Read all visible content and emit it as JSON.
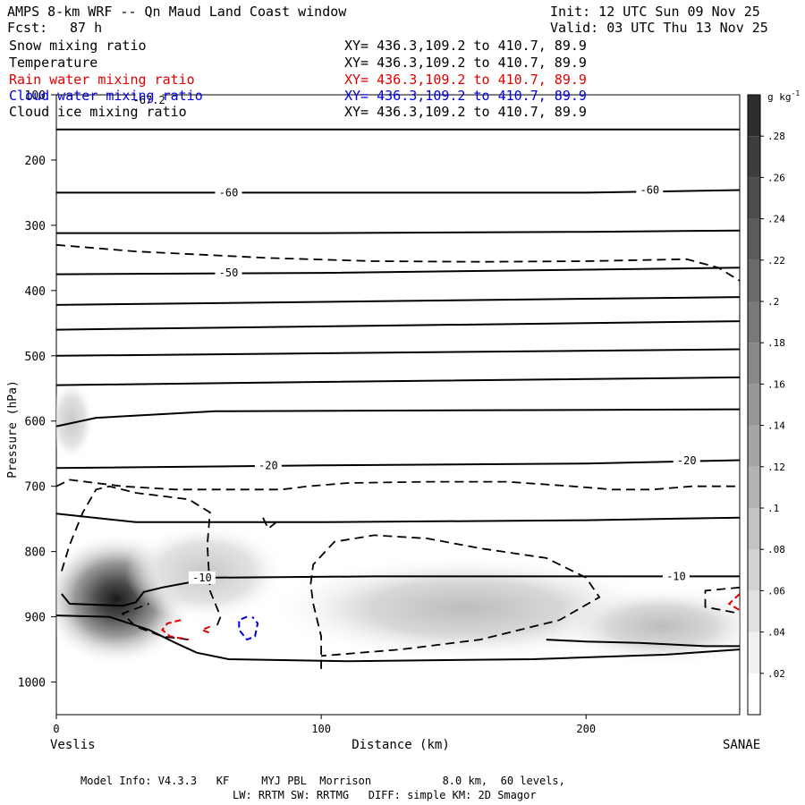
{
  "header": {
    "title": "AMPS 8-km WRF -- Qn Maud Land Coast window",
    "init": "Init: 12 UTC Sun 09 Nov 25",
    "fcst_label": "Fcst:",
    "fcst_value": "87 h",
    "valid": "Valid: 03 UTC Thu 13 Nov 25"
  },
  "fields": [
    {
      "name": "Snow mixing ratio",
      "xy": "XY= 436.3,109.2 to 410.7, 89.9",
      "color": "#000000"
    },
    {
      "name": "Temperature",
      "xy": "XY= 436.3,109.2 to 410.7, 89.9",
      "color": "#000000"
    },
    {
      "name": "Rain water mixing ratio",
      "xy": "XY= 436.3,109.2 to 410.7, 89.9",
      "color": "#e00000"
    },
    {
      "name": "Cloud water mixing ratio",
      "xy": "XY= 436.3,109.2 to 410.7, 89.9",
      "color": "#0000e0"
    },
    {
      "name": "Cloud ice mixing ratio",
      "xy": "XY= 436.3,109.2 to 410.7, 89.9",
      "color": "#000000"
    }
  ],
  "footer": {
    "line1": "Model Info: V4.3.3   KF     MYJ PBL  Morrison           8.0 km,  60 levels,",
    "line2": "LW: RRTM SW: RRTMG   DIFF: simple KM: 2D Smagor"
  },
  "chart_data": {
    "type": "contour-cross-section",
    "title": "AMPS 8-km WRF -- Qn Maud Land Coast window",
    "xlabel": "Distance (km)",
    "ylabel": "Pressure (hPa)",
    "xlim": [
      0,
      258
    ],
    "ylim": [
      1050,
      100
    ],
    "x_ticks": [
      0,
      100,
      200
    ],
    "y_ticks": [
      100,
      200,
      300,
      400,
      500,
      600,
      700,
      800,
      900,
      1000
    ],
    "endpoints": {
      "left": "Veslis",
      "right": "SANAE"
    },
    "colorbar": {
      "unit": "g kg",
      "unit_exp": "-1",
      "levels": [
        ".02",
        ".04",
        ".06",
        ".08",
        ".1",
        ".12",
        ".14",
        ".16",
        ".18",
        ".2",
        ".22",
        ".24",
        ".26",
        ".28"
      ],
      "min_color": "#ffffff",
      "max_color": "#2e2e2e"
    },
    "temperature_contours": [
      {
        "label": "-67.2",
        "points": [
          [
            0,
            153
          ],
          [
            258,
            153
          ]
        ],
        "label_at": [
          35,
          108
        ]
      },
      {
        "label": "-60",
        "points": [
          [
            0,
            250
          ],
          [
            100,
            250
          ],
          [
            200,
            250
          ],
          [
            258,
            246
          ]
        ],
        "label_at": [
          65,
          250
        ],
        "label2_at": [
          224,
          246
        ]
      },
      {
        "label": "",
        "points": [
          [
            0,
            312
          ],
          [
            100,
            312
          ],
          [
            200,
            310
          ],
          [
            258,
            308
          ]
        ]
      },
      {
        "label": "-50",
        "points": [
          [
            0,
            375
          ],
          [
            100,
            373
          ],
          [
            200,
            368
          ],
          [
            258,
            365
          ]
        ],
        "label_at": [
          65,
          373
        ]
      },
      {
        "label": "",
        "points": [
          [
            0,
            422
          ],
          [
            258,
            410
          ]
        ]
      },
      {
        "label": "",
        "points": [
          [
            0,
            460
          ],
          [
            258,
            447
          ]
        ]
      },
      {
        "label": "",
        "points": [
          [
            0,
            500
          ],
          [
            258,
            490
          ]
        ]
      },
      {
        "label": "",
        "points": [
          [
            0,
            545
          ],
          [
            100,
            540
          ],
          [
            258,
            533
          ]
        ]
      },
      {
        "label": "",
        "points": [
          [
            0,
            608
          ],
          [
            15,
            595
          ],
          [
            60,
            585
          ],
          [
            258,
            582
          ]
        ]
      },
      {
        "label": "-20",
        "points": [
          [
            0,
            672
          ],
          [
            100,
            668
          ],
          [
            200,
            665
          ],
          [
            258,
            660
          ]
        ],
        "label_at": [
          80,
          668
        ],
        "label2_at": [
          238,
          661
        ]
      },
      {
        "label": "",
        "points": [
          [
            0,
            742
          ],
          [
            30,
            755
          ],
          [
            100,
            755
          ],
          [
            200,
            752
          ],
          [
            258,
            748
          ]
        ]
      },
      {
        "label": "-10",
        "points": [
          [
            2,
            865
          ],
          [
            5,
            880
          ],
          [
            25,
            883
          ],
          [
            30,
            878
          ],
          [
            33,
            862
          ],
          [
            40,
            855
          ],
          [
            60,
            840
          ],
          [
            120,
            838
          ],
          [
            200,
            838
          ],
          [
            258,
            838
          ]
        ],
        "label_at": [
          55,
          840
        ],
        "label2_at": [
          234,
          838
        ]
      },
      {
        "label": "",
        "points": [
          [
            0,
            898
          ],
          [
            20,
            900
          ],
          [
            35,
            920
          ],
          [
            45,
            940
          ],
          [
            53,
            955
          ],
          [
            65,
            965
          ],
          [
            110,
            968
          ],
          [
            180,
            965
          ],
          [
            230,
            958
          ],
          [
            258,
            950
          ]
        ]
      },
      {
        "label": "",
        "points": [
          [
            185,
            935
          ],
          [
            200,
            938
          ],
          [
            220,
            940
          ],
          [
            245,
            945
          ],
          [
            258,
            945
          ]
        ]
      }
    ],
    "ice_contours": [
      {
        "points": [
          [
            0,
            330
          ],
          [
            30,
            340
          ],
          [
            80,
            350
          ],
          [
            120,
            355
          ],
          [
            160,
            356
          ],
          [
            200,
            355
          ],
          [
            238,
            352
          ],
          [
            250,
            365
          ],
          [
            258,
            385
          ]
        ]
      },
      {
        "points": [
          [
            0,
            700
          ],
          [
            5,
            690
          ],
          [
            15,
            695
          ],
          [
            25,
            700
          ],
          [
            45,
            705
          ],
          [
            70,
            705
          ],
          [
            85,
            705
          ],
          [
            95,
            700
          ],
          [
            110,
            695
          ],
          [
            140,
            693
          ],
          [
            170,
            693
          ],
          [
            195,
            700
          ],
          [
            210,
            705
          ],
          [
            225,
            705
          ],
          [
            240,
            700
          ],
          [
            258,
            700
          ]
        ]
      },
      {
        "points": [
          [
            2,
            830
          ],
          [
            5,
            790
          ],
          [
            10,
            740
          ],
          [
            15,
            705
          ],
          [
            20,
            700
          ],
          [
            30,
            710
          ],
          [
            50,
            720
          ],
          [
            58,
            740
          ],
          [
            57,
            790
          ],
          [
            58,
            860
          ],
          [
            62,
            900
          ],
          [
            60,
            920
          ]
        ]
      },
      {
        "points": [
          [
            50,
            935
          ],
          [
            40,
            930
          ],
          [
            30,
            915
          ],
          [
            25,
            895
          ],
          [
            35,
            880
          ]
        ]
      },
      {
        "points": [
          [
            78,
            748
          ],
          [
            80,
            765
          ],
          [
            83,
            755
          ]
        ]
      },
      {
        "points": [
          [
            100,
            980
          ],
          [
            100,
            930
          ],
          [
            97,
            880
          ],
          [
            96,
            850
          ],
          [
            97,
            820
          ],
          [
            105,
            785
          ],
          [
            120,
            775
          ],
          [
            140,
            780
          ],
          [
            160,
            795
          ],
          [
            185,
            810
          ],
          [
            200,
            840
          ],
          [
            205,
            870
          ],
          [
            190,
            905
          ],
          [
            160,
            935
          ],
          [
            130,
            950
          ],
          [
            100,
            960
          ]
        ]
      },
      {
        "points": [
          [
            258,
            855
          ],
          [
            245,
            860
          ],
          [
            245,
            885
          ],
          [
            258,
            895
          ]
        ]
      }
    ],
    "rain_contours": [
      {
        "points": [
          [
            47,
            905
          ],
          [
            42,
            910
          ],
          [
            40,
            920
          ],
          [
            43,
            930
          ],
          [
            50,
            935
          ]
        ]
      },
      {
        "points": [
          [
            58,
            915
          ],
          [
            55,
            920
          ],
          [
            58,
            925
          ]
        ]
      },
      {
        "points": [
          [
            258,
            865
          ],
          [
            254,
            880
          ],
          [
            258,
            890
          ]
        ]
      }
    ],
    "cloud_water_contours": [
      {
        "points": [
          [
            72,
            900
          ],
          [
            69,
            905
          ],
          [
            69,
            920
          ],
          [
            72,
            935
          ],
          [
            75,
            930
          ],
          [
            76,
            910
          ],
          [
            74,
            900
          ]
        ]
      }
    ]
  }
}
